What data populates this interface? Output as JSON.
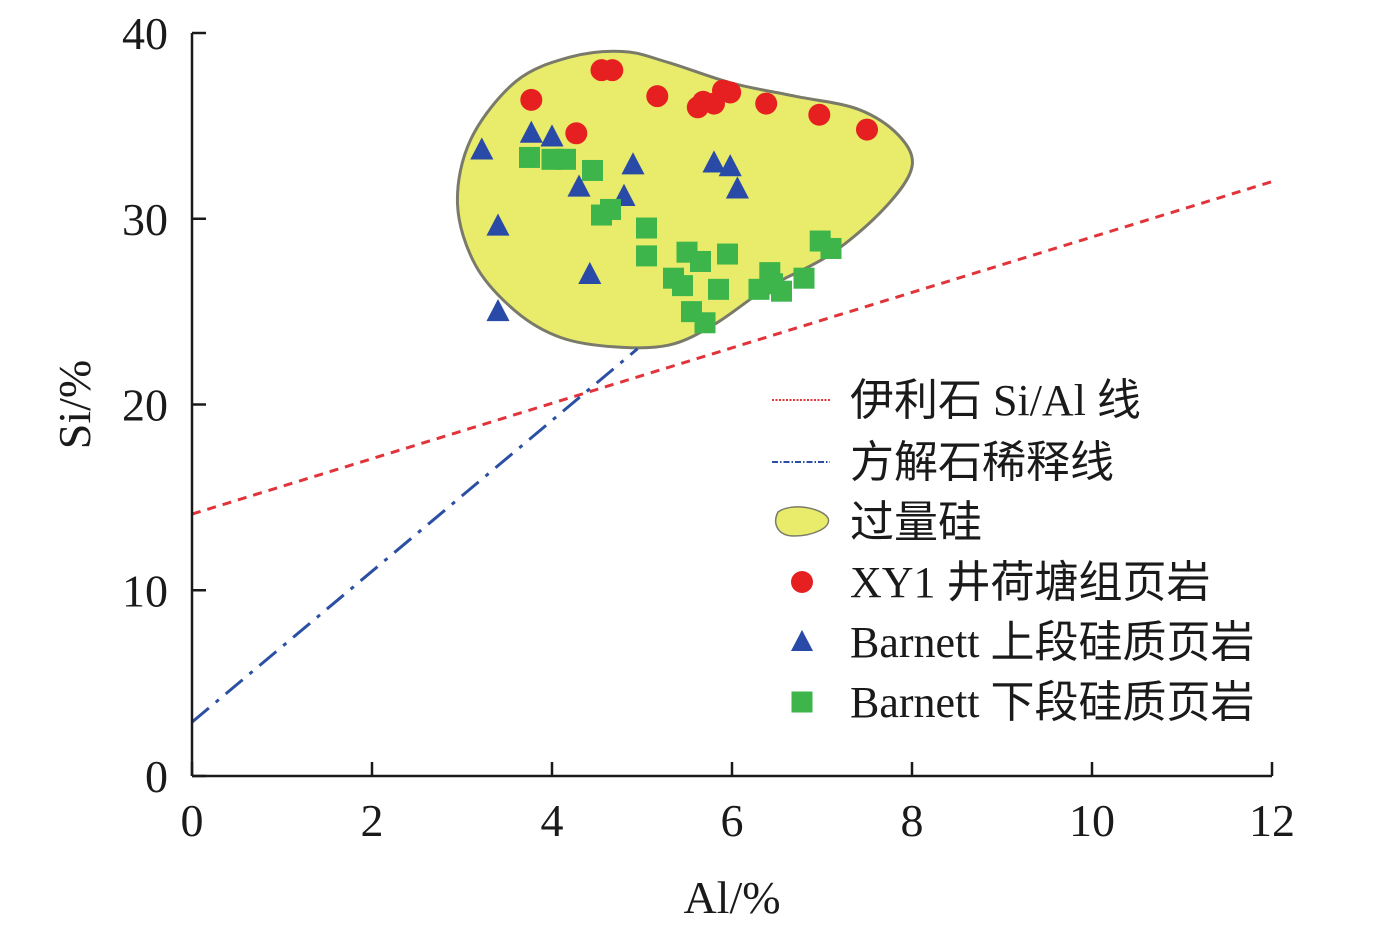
{
  "chart_data": {
    "type": "scatter",
    "title": "",
    "xlabel": "Al/%",
    "ylabel": "Si/%",
    "xlim": [
      0,
      12
    ],
    "ylim": [
      0,
      40
    ],
    "xticks": [
      0,
      2,
      4,
      6,
      8,
      10,
      12
    ],
    "yticks": [
      0,
      10,
      20,
      30,
      40
    ],
    "grid": false,
    "legend_position": "right",
    "lines": [
      {
        "name": "伊利石 Si/Al 线",
        "color": "#e0343a",
        "style": "dotted",
        "points": [
          [
            0,
            14.1
          ],
          [
            12,
            32.0
          ]
        ]
      },
      {
        "name": "方解石稀释线",
        "color": "#2b4fa3",
        "style": "dashed",
        "points": [
          [
            0,
            2.9
          ],
          [
            4.95,
            23.0
          ]
        ]
      }
    ],
    "region": {
      "name": "过量硅",
      "fill": "#e8ec6a",
      "stroke": "#7a7a6a",
      "outline": [
        [
          4.2,
          38.7
        ],
        [
          4.8,
          39.0
        ],
        [
          5.3,
          38.4
        ],
        [
          6.0,
          37.3
        ],
        [
          6.7,
          36.6
        ],
        [
          7.4,
          35.9
        ],
        [
          7.85,
          34.5
        ],
        [
          8.0,
          32.8
        ],
        [
          7.7,
          30.6
        ],
        [
          7.1,
          28.1
        ],
        [
          6.4,
          26.3
        ],
        [
          5.8,
          24.3
        ],
        [
          5.3,
          23.2
        ],
        [
          4.7,
          23.1
        ],
        [
          4.1,
          23.6
        ],
        [
          3.6,
          25.0
        ],
        [
          3.15,
          27.5
        ],
        [
          2.95,
          30.8
        ],
        [
          3.1,
          34.3
        ],
        [
          3.6,
          37.4
        ],
        [
          4.2,
          38.7
        ]
      ]
    },
    "series": [
      {
        "name": "XY1 井荷塘组页岩",
        "marker": "circle",
        "color": "#e62020",
        "points": [
          [
            3.77,
            36.4
          ],
          [
            4.27,
            34.6
          ],
          [
            4.55,
            38.0
          ],
          [
            4.67,
            38.0
          ],
          [
            5.17,
            36.6
          ],
          [
            5.62,
            36.0
          ],
          [
            5.68,
            36.3
          ],
          [
            5.8,
            36.2
          ],
          [
            5.9,
            36.9
          ],
          [
            5.98,
            36.8
          ],
          [
            6.38,
            36.2
          ],
          [
            6.97,
            35.6
          ],
          [
            7.5,
            34.8
          ]
        ]
      },
      {
        "name": "Barnett 上段硅质页岩",
        "marker": "triangle",
        "color": "#2a4aa8",
        "points": [
          [
            3.22,
            33.7
          ],
          [
            3.4,
            29.6
          ],
          [
            3.4,
            25.0
          ],
          [
            3.77,
            34.6
          ],
          [
            4.0,
            34.4
          ],
          [
            4.3,
            31.7
          ],
          [
            4.42,
            27.0
          ],
          [
            4.8,
            31.2
          ],
          [
            4.9,
            32.9
          ],
          [
            5.8,
            33.0
          ],
          [
            5.98,
            32.8
          ],
          [
            6.06,
            31.6
          ]
        ]
      },
      {
        "name": "Barnett 下段硅质页岩",
        "marker": "square",
        "color": "#3db54a",
        "points": [
          [
            3.75,
            33.3
          ],
          [
            4.0,
            33.2
          ],
          [
            4.15,
            33.2
          ],
          [
            4.45,
            32.6
          ],
          [
            4.55,
            30.2
          ],
          [
            4.65,
            30.5
          ],
          [
            5.05,
            29.5
          ],
          [
            5.05,
            28.0
          ],
          [
            5.35,
            26.8
          ],
          [
            5.45,
            26.4
          ],
          [
            5.5,
            28.2
          ],
          [
            5.55,
            25.0
          ],
          [
            5.65,
            27.7
          ],
          [
            5.7,
            24.4
          ],
          [
            5.85,
            26.2
          ],
          [
            5.95,
            28.1
          ],
          [
            6.3,
            26.2
          ],
          [
            6.42,
            27.1
          ],
          [
            6.45,
            26.5
          ],
          [
            6.55,
            26.1
          ],
          [
            6.8,
            26.8
          ],
          [
            6.98,
            28.8
          ],
          [
            7.1,
            28.4
          ]
        ]
      }
    ]
  }
}
